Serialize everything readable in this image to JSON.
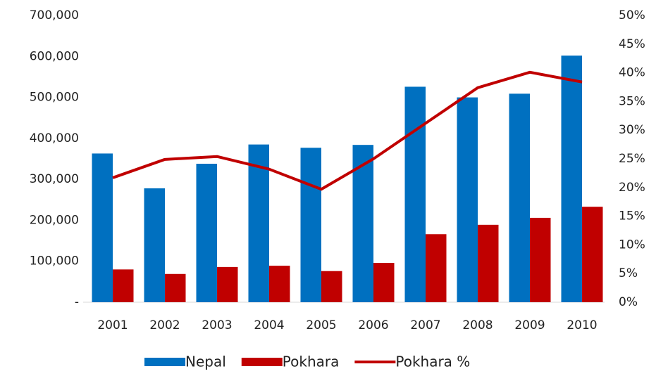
{
  "chart_data": {
    "type": "bar",
    "categories": [
      "2001",
      "2002",
      "2003",
      "2004",
      "2005",
      "2006",
      "2007",
      "2008",
      "2009",
      "2010"
    ],
    "series": [
      {
        "name": "Nepal",
        "color": "#0070c0",
        "type": "bar",
        "values": [
          363000,
          278000,
          338000,
          385000,
          377000,
          384000,
          526000,
          500000,
          509000,
          602000
        ]
      },
      {
        "name": "Pokhara",
        "color": "#c00000",
        "type": "bar",
        "values": [
          80000,
          69000,
          86000,
          89000,
          76000,
          96000,
          166000,
          189000,
          206000,
          233000
        ]
      },
      {
        "name": "Pokhara %",
        "color": "#c00000",
        "type": "line",
        "axis": "y2",
        "values": [
          21.7,
          24.9,
          25.4,
          23.2,
          19.7,
          25.0,
          31.2,
          37.4,
          40.1,
          38.4
        ]
      }
    ],
    "ylim": [
      0,
      700000
    ],
    "yticks": [
      {
        "value": 0,
        "label": "-"
      },
      {
        "value": 100000,
        "label": "100,000"
      },
      {
        "value": 200000,
        "label": "200,000"
      },
      {
        "value": 300000,
        "label": "300,000"
      },
      {
        "value": 400000,
        "label": "400,000"
      },
      {
        "value": 500000,
        "label": "500,000"
      },
      {
        "value": 600000,
        "label": "600,000"
      },
      {
        "value": 700000,
        "label": "700,000"
      }
    ],
    "y2lim": [
      0,
      50
    ],
    "y2ticks": [
      {
        "value": 0,
        "label": "0%"
      },
      {
        "value": 5,
        "label": "5%"
      },
      {
        "value": 10,
        "label": "10%"
      },
      {
        "value": 15,
        "label": "15%"
      },
      {
        "value": 20,
        "label": "20%"
      },
      {
        "value": 25,
        "label": "25%"
      },
      {
        "value": 30,
        "label": "30%"
      },
      {
        "value": 35,
        "label": "35%"
      },
      {
        "value": 40,
        "label": "40%"
      },
      {
        "value": 45,
        "label": "45%"
      },
      {
        "value": 50,
        "label": "50%"
      }
    ],
    "legend": "bottom"
  }
}
